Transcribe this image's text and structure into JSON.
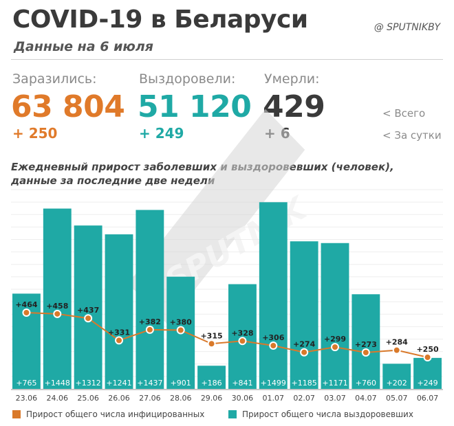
{
  "header": {
    "title": "COVID-19 в Беларуси",
    "subtitle": "Данные на 6 июля",
    "brand": "@ SPUTNIKBY"
  },
  "stats": {
    "infected": {
      "label": "Заразились:",
      "total": "63 804",
      "delta": "+ 250",
      "color": "#e07a2a"
    },
    "recovered": {
      "label": "Выздоровели:",
      "total": "51 120",
      "delta": "+ 249",
      "color": "#1fa9a5"
    },
    "died": {
      "label": "Умерли:",
      "total": "429",
      "delta": "+ 6",
      "color": "#3a3a3a"
    },
    "hint_total": "<  Всего",
    "hint_daily": "<  За сутки"
  },
  "chart_caption": {
    "line1": "Ежедневный прирост заболевших и выздоровевших (человек),",
    "line2": "данные за последние две недели"
  },
  "watermark": "SPUTNIK",
  "chart_data": {
    "type": "bar",
    "categories": [
      "23.06",
      "24.06",
      "25.06",
      "26.06",
      "27.06",
      "28.06",
      "29.06",
      "30.06",
      "01.07",
      "02.07",
      "03.07",
      "04.07",
      "05.07",
      "06.07"
    ],
    "series": [
      {
        "name": "Прирост общего числа выздоровевших",
        "type": "bar",
        "color": "#1fa9a5",
        "values": [
          765,
          1448,
          1312,
          1241,
          1437,
          901,
          186,
          841,
          1499,
          1185,
          1171,
          760,
          202,
          249
        ],
        "labels": [
          "+765",
          "+1448",
          "+1312",
          "+1241",
          "+1437",
          "+901",
          "+186",
          "+841",
          "+1499",
          "+1185",
          "+1171",
          "+760",
          "+202",
          "+249"
        ]
      },
      {
        "name": "Прирост общего числа инфицированных",
        "type": "line",
        "color": "#d9792a",
        "values": [
          464,
          458,
          437,
          331,
          382,
          380,
          315,
          328,
          306,
          274,
          299,
          273,
          284,
          250
        ],
        "labels": [
          "+464",
          "+458",
          "+437",
          "+331",
          "+382",
          "+380",
          "+315",
          "+328",
          "+306",
          "+274",
          "+299",
          "+273",
          "+284",
          "+250"
        ]
      }
    ],
    "grid": true,
    "legend": "bottom"
  }
}
